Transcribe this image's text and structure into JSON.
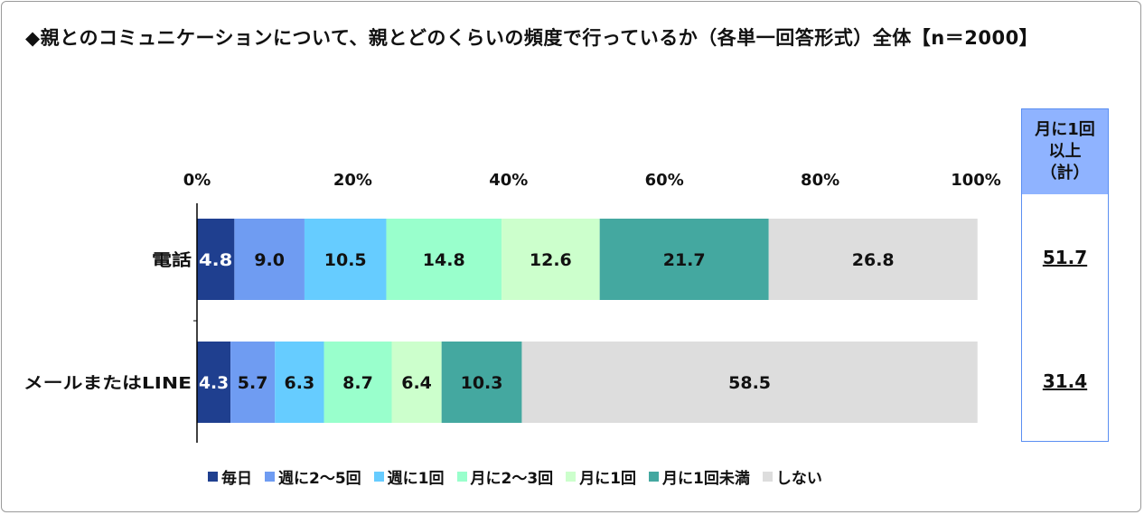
{
  "title": "◆親とのコミュニケーションについて、親とどのくらいの頻度で行っているか（各単一回答形式）全体【n＝2000】",
  "chart_data": {
    "type": "bar",
    "orientation": "horizontal",
    "stacked": true,
    "xlim": [
      0,
      100
    ],
    "x_ticks": [
      "0%",
      "20%",
      "40%",
      "60%",
      "80%",
      "100%"
    ],
    "categories": [
      "電話",
      "メールまたはLINE"
    ],
    "series": [
      {
        "name": "毎日",
        "color": "#1f3f8f",
        "values": [
          4.8,
          4.3
        ]
      },
      {
        "name": "週に2～5回",
        "color": "#6f9cf2",
        "values": [
          9.0,
          5.7
        ]
      },
      {
        "name": "週に1回",
        "color": "#66ccff",
        "values": [
          10.5,
          6.3
        ]
      },
      {
        "name": "月に2～3回",
        "color": "#99ffcc",
        "values": [
          14.8,
          8.7
        ]
      },
      {
        "name": "月に1回",
        "color": "#ccffcc",
        "values": [
          12.6,
          6.4
        ]
      },
      {
        "name": "月に1回未満",
        "color": "#44a8a0",
        "values": [
          21.7,
          10.3
        ]
      },
      {
        "name": "しない",
        "color": "#dddddd",
        "values": [
          26.8,
          58.5
        ]
      }
    ],
    "legend_position": "bottom"
  },
  "summary": {
    "header_lines": [
      "月に1回",
      "以上",
      "（計）"
    ],
    "values": [
      "51.7",
      "31.4"
    ],
    "header_color": "#8fb3ff",
    "border_color": "#5b8ff2"
  }
}
